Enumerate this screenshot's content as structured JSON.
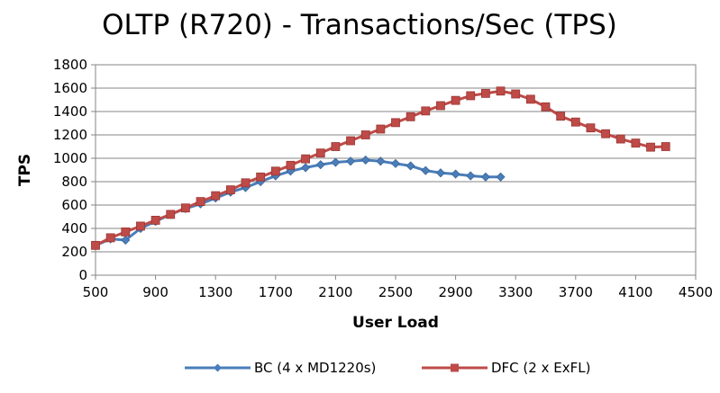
{
  "chart_data": {
    "type": "line",
    "title": "OLTP (R720) - Transactions/Sec (TPS)",
    "xlabel": "User Load",
    "ylabel": "TPS",
    "xlim": [
      500,
      4500
    ],
    "ylim": [
      0,
      1800
    ],
    "xticks": [
      500,
      900,
      1300,
      1700,
      2100,
      2500,
      2900,
      3300,
      3700,
      4100,
      4500
    ],
    "yticks": [
      0,
      200,
      400,
      600,
      800,
      1000,
      1200,
      1400,
      1600,
      1800
    ],
    "grid": "horizontal",
    "legend_position": "bottom",
    "series": [
      {
        "name": "BC (4 x MD1220s)",
        "color": "#4a7ebb",
        "marker": "diamond",
        "x": [
          500,
          600,
          700,
          800,
          900,
          1000,
          1100,
          1200,
          1300,
          1400,
          1500,
          1600,
          1700,
          1800,
          1900,
          2000,
          2100,
          2200,
          2300,
          2400,
          2500,
          2600,
          2700,
          2800,
          2900,
          3000,
          3100,
          3200
        ],
        "y": [
          255,
          310,
          300,
          400,
          460,
          520,
          570,
          610,
          660,
          710,
          750,
          800,
          850,
          890,
          920,
          945,
          965,
          975,
          985,
          975,
          955,
          935,
          895,
          875,
          865,
          850,
          840,
          840
        ]
      },
      {
        "name": "DFC (2 x ExFL)",
        "color": "#be4b48",
        "marker": "square",
        "x": [
          500,
          600,
          700,
          800,
          900,
          1000,
          1100,
          1200,
          1300,
          1400,
          1500,
          1600,
          1700,
          1800,
          1900,
          2000,
          2100,
          2200,
          2300,
          2400,
          2500,
          2600,
          2700,
          2800,
          2900,
          3000,
          3100,
          3200,
          3300,
          3400,
          3500,
          3600,
          3700,
          3800,
          3900,
          4000,
          4100,
          4200,
          4300
        ],
        "y": [
          255,
          320,
          370,
          420,
          470,
          520,
          575,
          630,
          680,
          730,
          790,
          840,
          890,
          940,
          995,
          1045,
          1100,
          1150,
          1200,
          1250,
          1305,
          1355,
          1405,
          1450,
          1495,
          1535,
          1555,
          1575,
          1550,
          1505,
          1440,
          1360,
          1310,
          1260,
          1210,
          1165,
          1130,
          1095,
          1100
        ]
      }
    ]
  }
}
